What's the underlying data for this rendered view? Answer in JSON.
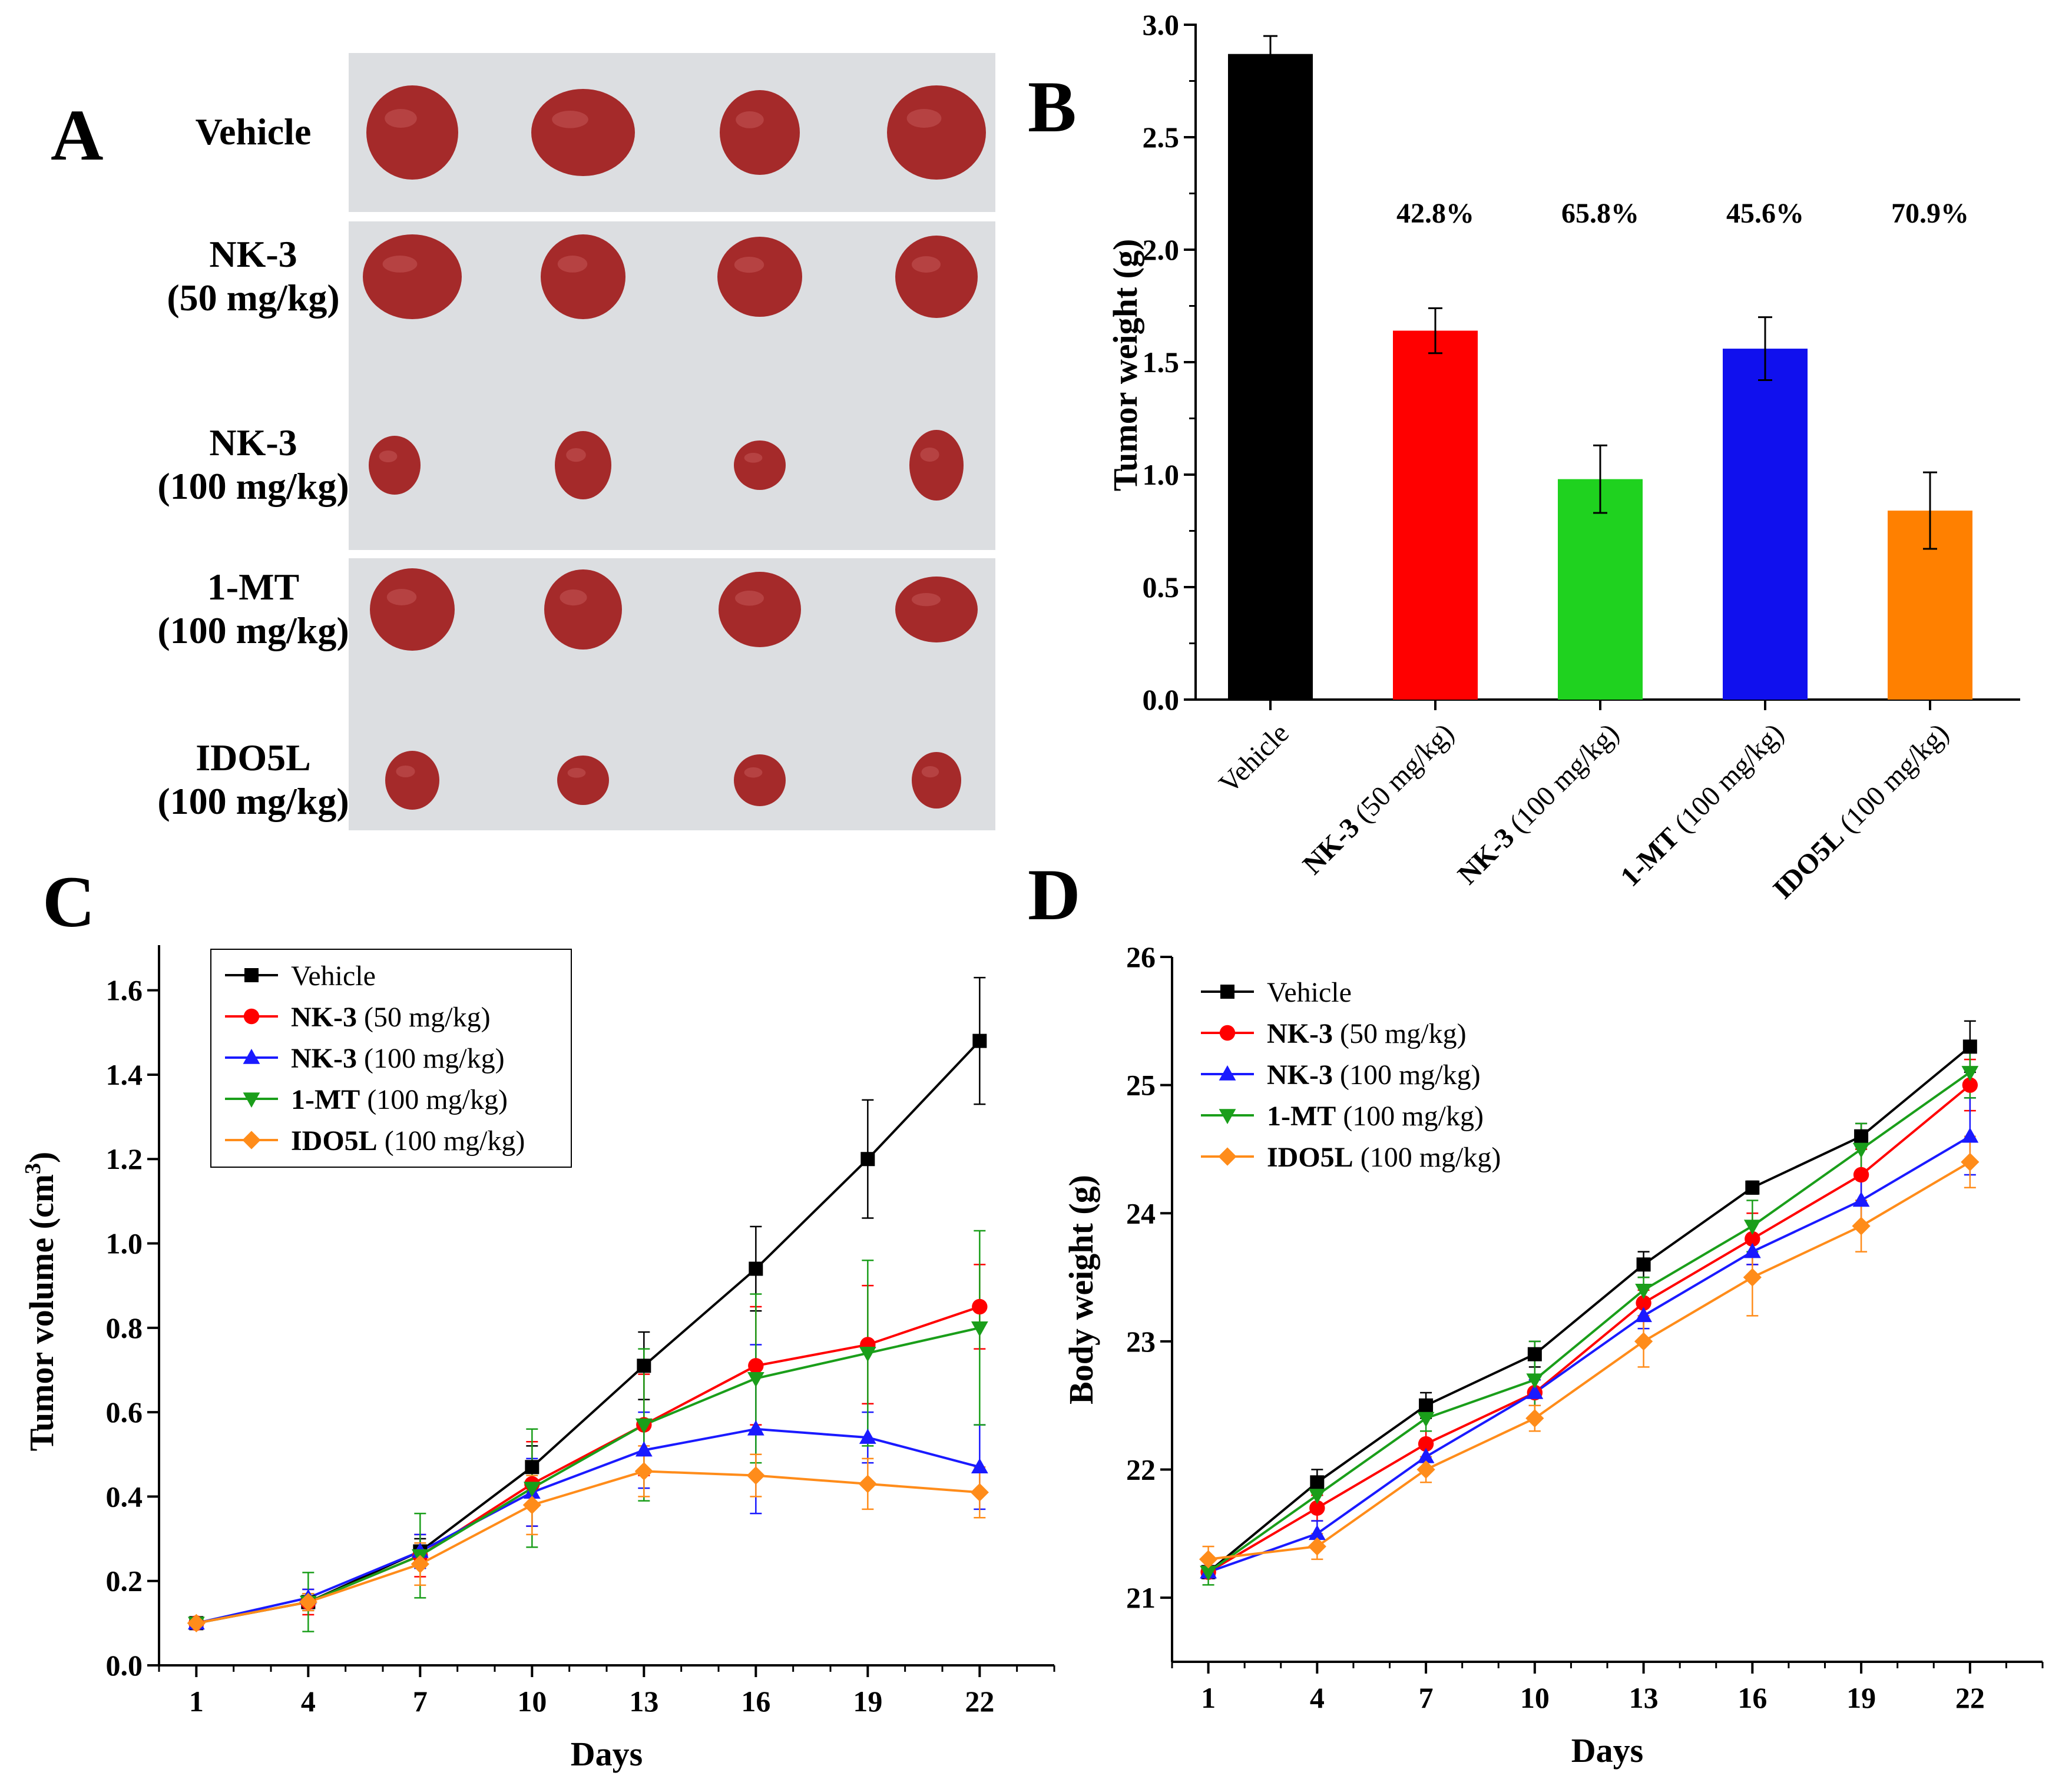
{
  "panels": {
    "a": "A",
    "b": "B",
    "c": "C",
    "d": "D"
  },
  "photo": {
    "rows": [
      {
        "label_lines": [
          "Vehicle"
        ],
        "tumor_count": 4
      },
      {
        "label_lines": [
          "NK-3",
          "(50 mg/kg)"
        ],
        "tumor_count": 4
      },
      {
        "label_lines": [
          "NK-3",
          "(100 mg/kg)"
        ],
        "tumor_count": 4
      },
      {
        "label_lines": [
          "1-MT",
          "(100 mg/kg)"
        ],
        "tumor_count": 4
      },
      {
        "label_lines": [
          "IDO5L",
          "(100 mg/kg)"
        ],
        "tumor_count": 4
      }
    ],
    "colors": {
      "background": "#dcdee1",
      "tumor": "#a52a2a"
    }
  },
  "chart_data": [
    {
      "id": "B",
      "type": "bar",
      "ylabel": "Tumor weight (g)",
      "ylim": [
        0,
        3.0
      ],
      "yticks": [
        "0.0",
        "0.5",
        "1.0",
        "1.5",
        "2.0",
        "2.5",
        "3.0"
      ],
      "categories": [
        {
          "bold": "Vehicle",
          "rest": "",
          "is_control": true
        },
        {
          "bold": "NK-3",
          "rest": " (50 mg/kg)"
        },
        {
          "bold": "NK-3",
          "rest": " (100 mg/kg)"
        },
        {
          "bold": "1-MT",
          "rest": " (100 mg/kg)"
        },
        {
          "bold": "IDO5L",
          "rest": " (100 mg/kg)"
        }
      ],
      "values": [
        2.87,
        1.64,
        0.98,
        1.56,
        0.84
      ],
      "errors": [
        0.08,
        0.1,
        0.15,
        0.14,
        0.17
      ],
      "colors": [
        "#000000",
        "#ff0000",
        "#1fd21f",
        "#1010ee",
        "#ff8000"
      ],
      "inhibition_labels": [
        "",
        "42.8%",
        "65.8%",
        "45.6%",
        "70.9%"
      ]
    },
    {
      "id": "C",
      "type": "line",
      "xlabel": "Days",
      "ylabel_main": "Tumor volume (cm",
      "ylabel_sup": "3",
      "ylabel_close": ")",
      "x": [
        1,
        4,
        7,
        10,
        13,
        16,
        19,
        22
      ],
      "xticks": [
        "1",
        "4",
        "7",
        "10",
        "13",
        "16",
        "19",
        "22"
      ],
      "ylim": [
        0,
        1.7
      ],
      "yticks": [
        "0.0",
        "0.2",
        "0.4",
        "0.6",
        "0.8",
        "1.0",
        "1.2",
        "1.4",
        "1.6"
      ],
      "legend_position": "top-left",
      "series": [
        {
          "name_bold": "",
          "name_rest": "Vehicle",
          "color": "#000000",
          "marker": "square",
          "values": [
            0.1,
            0.15,
            0.27,
            0.47,
            0.71,
            0.94,
            1.2,
            1.48
          ],
          "errors": [
            0.01,
            0.02,
            0.03,
            0.05,
            0.08,
            0.1,
            0.14,
            0.15
          ]
        },
        {
          "name_bold": "NK-3",
          "name_rest": " (50 mg/kg)",
          "color": "#ff0000",
          "marker": "circle",
          "values": [
            0.1,
            0.15,
            0.26,
            0.43,
            0.57,
            0.71,
            0.76,
            0.85
          ],
          "errors": [
            0.01,
            0.03,
            0.05,
            0.1,
            0.12,
            0.14,
            0.14,
            0.1
          ]
        },
        {
          "name_bold": "NK-3",
          "name_rest": " (100 mg/kg)",
          "color": "#1a1aff",
          "marker": "triangle-up",
          "values": [
            0.1,
            0.16,
            0.27,
            0.41,
            0.51,
            0.56,
            0.54,
            0.47
          ],
          "errors": [
            0.01,
            0.02,
            0.04,
            0.08,
            0.09,
            0.2,
            0.06,
            0.1
          ]
        },
        {
          "name_bold": "1-MT",
          "name_rest": " (100 mg/kg)",
          "color": "#1a9e1a",
          "marker": "triangle-down",
          "values": [
            0.1,
            0.15,
            0.26,
            0.42,
            0.57,
            0.68,
            0.74,
            0.8
          ],
          "errors": [
            0.01,
            0.07,
            0.1,
            0.14,
            0.18,
            0.2,
            0.22,
            0.23
          ]
        },
        {
          "name_bold": "IDO5L",
          "name_rest": " (100 mg/kg)",
          "color": "#ff8c1a",
          "marker": "diamond",
          "values": [
            0.1,
            0.15,
            0.24,
            0.38,
            0.46,
            0.45,
            0.43,
            0.41
          ],
          "errors": [
            0.01,
            0.02,
            0.05,
            0.07,
            0.06,
            0.05,
            0.06,
            0.06
          ]
        }
      ]
    },
    {
      "id": "D",
      "type": "line",
      "xlabel": "Days",
      "ylabel": "Body weight (g)",
      "x": [
        1,
        4,
        7,
        10,
        13,
        16,
        19,
        22
      ],
      "xticks": [
        "1",
        "4",
        "7",
        "10",
        "13",
        "16",
        "19",
        "22"
      ],
      "ylim": [
        20.5,
        26
      ],
      "yticks": [
        "21",
        "22",
        "23",
        "24",
        "25",
        "26"
      ],
      "ytick_values": [
        21,
        22,
        23,
        24,
        25,
        26
      ],
      "legend_position": "top-left",
      "series": [
        {
          "name_bold": "",
          "name_rest": "Vehicle",
          "color": "#000000",
          "marker": "square",
          "values": [
            21.2,
            21.9,
            22.5,
            22.9,
            23.6,
            24.2,
            24.6,
            25.3
          ],
          "errors": [
            0.05,
            0.1,
            0.1,
            0.1,
            0.1,
            0.05,
            0.1,
            0.2
          ]
        },
        {
          "name_bold": "NK-3",
          "name_rest": " (50 mg/kg)",
          "color": "#ff0000",
          "marker": "circle",
          "values": [
            21.2,
            21.7,
            22.2,
            22.6,
            23.3,
            23.8,
            24.3,
            25.0
          ],
          "errors": [
            0.05,
            0.1,
            0.1,
            0.1,
            0.1,
            0.2,
            0.2,
            0.2
          ]
        },
        {
          "name_bold": "NK-3",
          "name_rest": " (100 mg/kg)",
          "color": "#1a1aff",
          "marker": "triangle-up",
          "values": [
            21.2,
            21.5,
            22.1,
            22.6,
            23.2,
            23.7,
            24.1,
            24.6
          ],
          "errors": [
            0.05,
            0.1,
            0.1,
            0.1,
            0.1,
            0.1,
            0.2,
            0.3
          ]
        },
        {
          "name_bold": "1-MT",
          "name_rest": " (100 mg/kg)",
          "color": "#1a9e1a",
          "marker": "triangle-down",
          "values": [
            21.2,
            21.8,
            22.4,
            22.7,
            23.4,
            23.9,
            24.5,
            25.1
          ],
          "errors": [
            0.1,
            0.1,
            0.1,
            0.3,
            0.1,
            0.2,
            0.2,
            0.2
          ]
        },
        {
          "name_bold": "IDO5L",
          "name_rest": " (100 mg/kg)",
          "color": "#ff8c1a",
          "marker": "diamond",
          "values": [
            21.3,
            21.4,
            22.0,
            22.4,
            23.0,
            23.5,
            23.9,
            24.4
          ],
          "errors": [
            0.1,
            0.1,
            0.1,
            0.1,
            0.2,
            0.3,
            0.2,
            0.2
          ]
        }
      ]
    }
  ]
}
